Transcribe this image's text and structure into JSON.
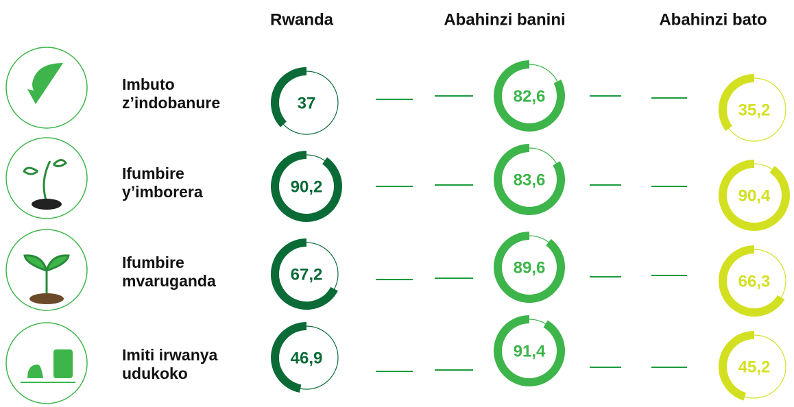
{
  "chart_data": {
    "type": "ring",
    "categories": [
      "Imbuto z’indobanure",
      "Ifumbire y’imborera",
      "Ifumbire mvaruganda",
      "Imiti irwanya udukoko"
    ],
    "series": [
      {
        "name": "Rwanda",
        "color": "#0b6b37",
        "values": [
          37,
          90.2,
          67.2,
          46.9
        ],
        "value_labels": [
          "37",
          "90,2",
          "67,2",
          "46,9"
        ]
      },
      {
        "name": "Abahinzi banini",
        "color": "#3db54a",
        "values": [
          82.6,
          83.6,
          89.6,
          91.4
        ],
        "value_labels": [
          "82,6",
          "83,6",
          "89,6",
          "91,4"
        ]
      },
      {
        "name": "Abahinzi bato",
        "color": "#d3e021",
        "values": [
          35.2,
          90.4,
          66.3,
          45.2
        ],
        "value_labels": [
          "35,2",
          "90,4",
          "66,3",
          "45,2"
        ]
      }
    ],
    "ylim": [
      0,
      100
    ]
  }
}
